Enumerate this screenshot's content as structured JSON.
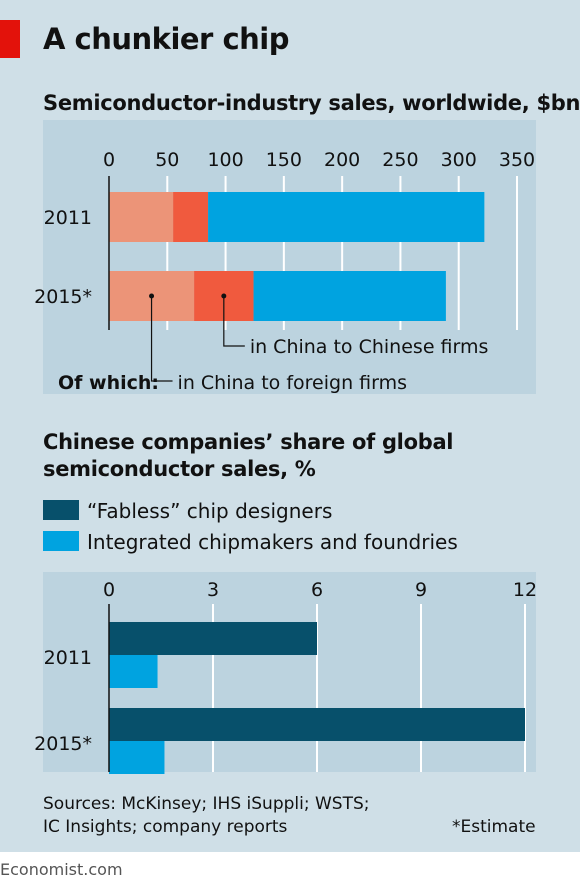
{
  "header": {
    "title": "A chunkier chip",
    "accent_color": "#e3120b"
  },
  "footer": {
    "source_line1": "Sources: McKinsey; IHS iSuppli; WSTS;",
    "source_line2": "IC Insights; company reports",
    "note": "*Estimate",
    "brand": "Economist.com"
  },
  "chart_data": [
    {
      "type": "bar",
      "stacked": true,
      "orientation": "horizontal",
      "title": "Semiconductor-industry sales, worldwide, $bn",
      "categories": [
        "2011",
        "2015*"
      ],
      "xlim": [
        0,
        350
      ],
      "xticks": [
        0,
        50,
        100,
        150,
        200,
        250,
        300,
        350
      ],
      "grid": true,
      "series": [
        {
          "name": "in China to foreign firms",
          "color": "#ec9478",
          "values": [
            55,
            73
          ]
        },
        {
          "name": "in China to Chinese firms",
          "color": "#f05a3e",
          "values": [
            30,
            51
          ]
        },
        {
          "name": "",
          "color": "#00a3e0",
          "values": [
            237,
            165
          ]
        }
      ],
      "annotation_prefix": "Of which:"
    },
    {
      "type": "bar",
      "orientation": "horizontal",
      "title": "Chinese companies’ share of global semiconductor sales, %",
      "title_lines": [
        "Chinese companies’ share of global",
        "semiconductor sales, %"
      ],
      "categories": [
        "2011",
        "2015*"
      ],
      "xlim": [
        0,
        12
      ],
      "xticks": [
        0,
        3,
        6,
        9,
        12
      ],
      "grid": true,
      "legend_position": "top-left",
      "series": [
        {
          "name": "“Fabless” chip designers",
          "color": "#07506b",
          "values": [
            6.0,
            12.0
          ]
        },
        {
          "name": "Integrated chipmakers and foundries",
          "color": "#00a3e0",
          "values": [
            1.4,
            1.6
          ]
        }
      ]
    }
  ]
}
